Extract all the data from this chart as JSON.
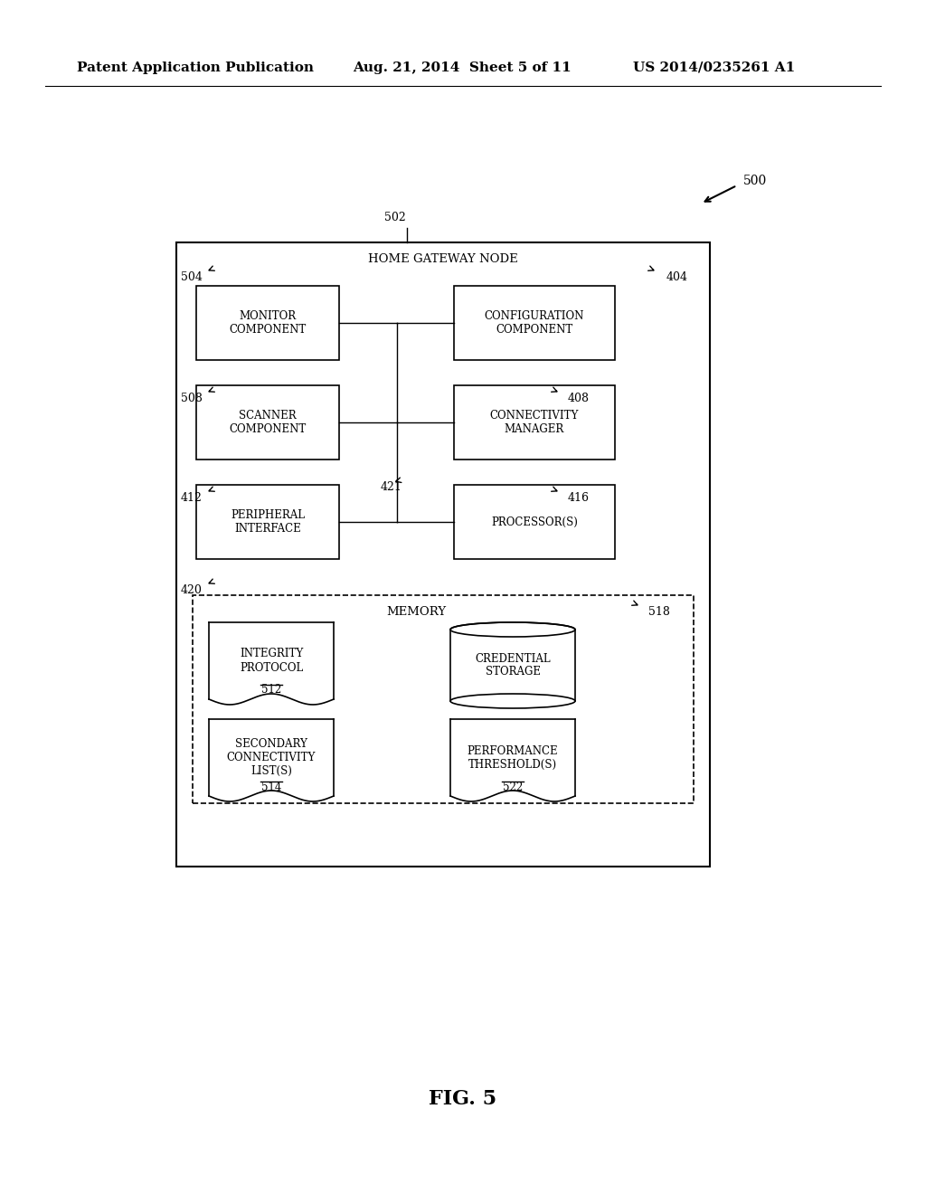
{
  "bg_color": "#ffffff",
  "header_text": "Patent Application Publication",
  "header_date": "Aug. 21, 2014  Sheet 5 of 11",
  "header_patent": "US 2014/0235261 A1",
  "fig_label": "FIG. 5",
  "label_500": "500",
  "label_502": "502",
  "label_outer_box": "HOME GATEWAY NODE",
  "label_504": "504",
  "label_404": "404",
  "label_508": "508",
  "label_408": "408",
  "label_412": "412",
  "label_421": "421",
  "label_416": "416",
  "label_420": "420",
  "label_518": "518",
  "label_512": "512",
  "label_514": "514",
  "label_522": "522",
  "box_monitor": "MONITOR\nCOMPONENT",
  "box_config": "CONFIGURATION\nCOMPONENT",
  "box_scanner": "SCANNER\nCOMPONENT",
  "box_connectivity": "CONNECTIVITY\nMANAGER",
  "box_peripheral": "PERIPHERAL\nINTERFACE",
  "box_processor": "PROCESSOR(S)",
  "memory_label": "MEMORY",
  "box_credential": "CREDENTIAL\nSTORAGE",
  "line_color": "#000000",
  "text_color": "#000000",
  "font_size_header": 11,
  "font_size_box": 9,
  "font_size_label": 9,
  "font_size_fig": 16
}
